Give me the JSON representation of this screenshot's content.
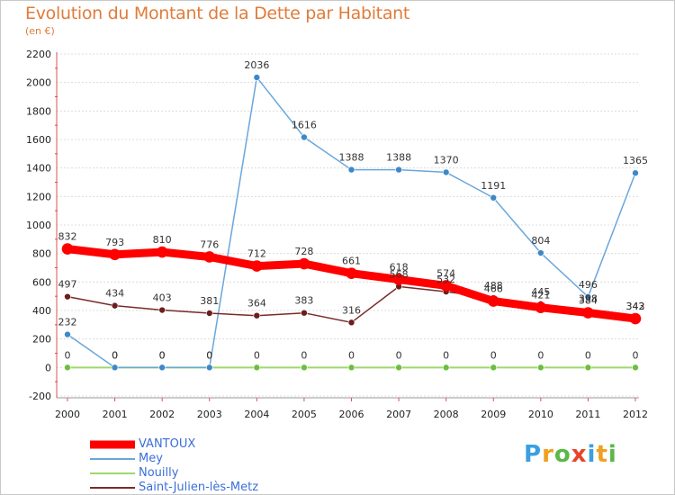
{
  "header": {
    "title": "Evolution du Montant de la Dette par Habitant",
    "unit": "(en €)"
  },
  "colors": {
    "title": "#e07c3a",
    "legend_text": "#3a6fd8"
  },
  "logo": {
    "text": "Proxiti"
  },
  "chart_data": {
    "type": "line",
    "title": "Evolution du Montant de la Dette par Habitant",
    "ylabel": "(en €)",
    "xlabel": "",
    "x": [
      "2000",
      "2001",
      "2002",
      "2003",
      "2004",
      "2005",
      "2006",
      "2007",
      "2008",
      "2009",
      "2010",
      "2011",
      "2012"
    ],
    "ylim": [
      -200,
      2200
    ],
    "yticks": [
      -200,
      0,
      200,
      400,
      600,
      800,
      1000,
      1200,
      1400,
      1600,
      1800,
      2000,
      2200
    ],
    "grid": "horizontal",
    "legend_position": "bottom-left",
    "series": [
      {
        "name": "VANTOUX",
        "color": "#ff0000",
        "marker": "#ff0000",
        "width": 9,
        "values": [
          832,
          793,
          810,
          776,
          712,
          728,
          661,
          618,
          574,
          466,
          421,
          384,
          343
        ]
      },
      {
        "name": "Mey",
        "color": "#6aa6db",
        "marker": "#3e88c8",
        "width": 1.5,
        "values": [
          232,
          0,
          0,
          0,
          2036,
          1616,
          1388,
          1388,
          1370,
          1191,
          804,
          496,
          1365
        ]
      },
      {
        "name": "Nouilly",
        "color": "#9ed86a",
        "marker": "#6cbf3e",
        "width": 2,
        "values": [
          0,
          0,
          0,
          0,
          0,
          0,
          0,
          0,
          0,
          0,
          0,
          0,
          0
        ]
      },
      {
        "name": "Saint-Julien-lès-Metz",
        "color": "#7a2a2a",
        "marker": "#6a1e1e",
        "width": 1.5,
        "values": [
          497,
          434,
          403,
          381,
          364,
          383,
          316,
          568,
          532,
          488,
          445,
          398,
          342
        ]
      }
    ]
  }
}
